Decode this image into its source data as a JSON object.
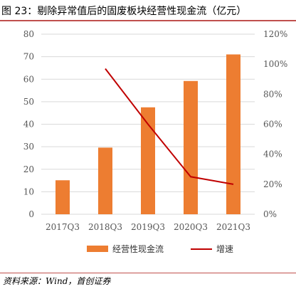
{
  "title": "图 23：剔除异常值后的固废板块经营性现金流（亿元）",
  "source": "资料来源：Wind，首创证券",
  "chart_data": {
    "type": "bar",
    "categories": [
      "2017Q3",
      "2018Q3",
      "2019Q3",
      "2020Q3",
      "2021Q3"
    ],
    "series": [
      {
        "name": "经营性现金流",
        "type": "bar",
        "axis": "left",
        "color": "#ed7d31",
        "values": [
          15.1,
          29.6,
          47.5,
          59.2,
          71.0
        ]
      },
      {
        "name": "增速",
        "type": "line",
        "axis": "right",
        "color": "#c00000",
        "values": [
          null,
          97,
          60,
          25,
          20
        ]
      }
    ],
    "ylim": [
      0,
      80
    ],
    "yticks": [
      "0",
      "10",
      "20",
      "30",
      "40",
      "50",
      "60",
      "70",
      "80"
    ],
    "y2lim": [
      0,
      120
    ],
    "y2ticks": [
      "0%",
      "20%",
      "40%",
      "60%",
      "80%",
      "100%",
      "120%"
    ],
    "grid": true,
    "legend": "bottom"
  }
}
